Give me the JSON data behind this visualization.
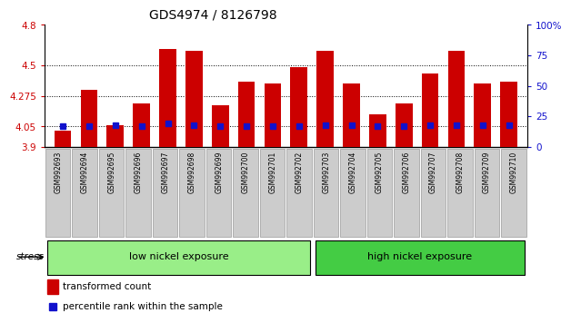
{
  "title": "GDS4974 / 8126798",
  "samples": [
    "GSM992693",
    "GSM992694",
    "GSM992695",
    "GSM992696",
    "GSM992697",
    "GSM992698",
    "GSM992699",
    "GSM992700",
    "GSM992701",
    "GSM992702",
    "GSM992703",
    "GSM992704",
    "GSM992705",
    "GSM992706",
    "GSM992707",
    "GSM992708",
    "GSM992709",
    "GSM992710"
  ],
  "bar_values": [
    4.02,
    4.32,
    4.06,
    4.22,
    4.62,
    4.61,
    4.21,
    4.38,
    4.37,
    4.49,
    4.61,
    4.37,
    4.14,
    4.22,
    4.44,
    4.61,
    4.37,
    4.38
  ],
  "percentile_values": [
    4.055,
    4.055,
    4.063,
    4.055,
    4.075,
    4.063,
    4.055,
    4.055,
    4.055,
    4.055,
    4.063,
    4.063,
    4.055,
    4.055,
    4.063,
    4.063,
    4.063,
    4.063
  ],
  "ymin": 3.9,
  "ymax": 4.8,
  "yticks_left": [
    3.9,
    4.05,
    4.275,
    4.5,
    4.8
  ],
  "ytick_labels_left": [
    "3.9",
    "4.05",
    "4.275",
    "4.5",
    "4.8"
  ],
  "yticks_right_pct": [
    0,
    25,
    50,
    75,
    100
  ],
  "ytick_labels_right": [
    "0",
    "25",
    "50",
    "75",
    "100%"
  ],
  "grid_lines": [
    4.05,
    4.275,
    4.5
  ],
  "bar_color": "#cc0000",
  "percentile_color": "#1111cc",
  "bar_width": 0.65,
  "baseline": 3.9,
  "low_group_label": "low nickel exposure",
  "high_group_label": "high nickel exposure",
  "n_low": 10,
  "n_high": 8,
  "stress_label": "stress",
  "legend_bar_label": "transformed count",
  "legend_pct_label": "percentile rank within the sample",
  "title_color": "#000000",
  "left_tick_color": "#cc0000",
  "right_tick_color": "#1111cc",
  "bg_color": "#ffffff",
  "plot_bg": "#ffffff",
  "low_group_color": "#99ee88",
  "high_group_color": "#44cc44",
  "label_bg_color": "#cccccc",
  "label_edge_color": "#999999"
}
